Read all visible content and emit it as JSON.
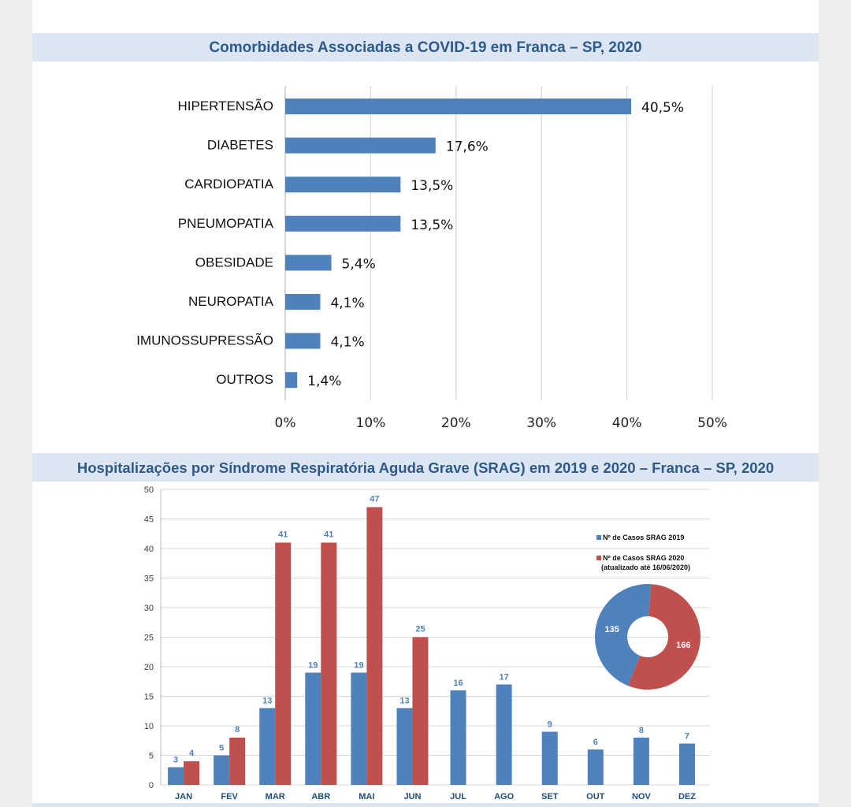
{
  "charts": [
    {
      "title": "Comorbidades Associadas a COVID-19 em Franca – SP, 2020"
    },
    {
      "title": "Hospitalizações por Síndrome Respiratória Aguda Grave (SRAG) em 2019 e 2020 – Franca – SP, 2020"
    }
  ],
  "chart_data": [
    {
      "type": "bar",
      "orientation": "horizontal",
      "title": "Comorbidades Associadas a COVID-19 em Franca – SP, 2020",
      "categories": [
        "HIPERTENSÃO",
        "DIABETES",
        "CARDIOPATIA",
        "PNEUMOPATIA",
        "OBESIDADE",
        "NEUROPATIA",
        "IMUNOSSUPRESSÃO",
        "OUTROS"
      ],
      "values": [
        40.5,
        17.6,
        13.5,
        13.5,
        5.4,
        4.1,
        4.1,
        1.4
      ],
      "value_labels": [
        "40,5%",
        "17,6%",
        "13,5%",
        "13,5%",
        "5,4%",
        "4,1%",
        "4,1%",
        "1,4%"
      ],
      "xlim": [
        0,
        50
      ],
      "x_ticks": [
        0,
        10,
        20,
        30,
        40,
        50
      ],
      "x_tick_labels": [
        "0%",
        "10%",
        "20%",
        "30%",
        "40%",
        "50%"
      ],
      "grid": "vertical",
      "color": "#4f81bd"
    },
    {
      "type": "bar",
      "title": "Hospitalizações por Síndrome Respiratória Aguda Grave (SRAG) em 2019 e 2020 – Franca – SP, 2020",
      "categories": [
        "JAN",
        "FEV",
        "MAR",
        "ABR",
        "MAI",
        "JUN",
        "JUL",
        "AGO",
        "SET",
        "OUT",
        "NOV",
        "DEZ"
      ],
      "series": [
        {
          "name": "Nº de Casos SRAG 2019",
          "color": "#4f81bd",
          "values": [
            3,
            5,
            13,
            19,
            19,
            13,
            16,
            17,
            9,
            6,
            8,
            7
          ]
        },
        {
          "name": "Nº de Casos SRAG 2020",
          "name_line2": "(atualizado até 16/06/2020)",
          "color": "#c0504d",
          "values": [
            4,
            8,
            41,
            41,
            47,
            25,
            null,
            null,
            null,
            null,
            null,
            null
          ]
        }
      ],
      "ylim": [
        0,
        50
      ],
      "y_ticks": [
        0,
        5,
        10,
        15,
        20,
        25,
        30,
        35,
        40,
        45,
        50
      ],
      "grid": "horizontal",
      "legend_position": "right",
      "inset_donut": {
        "type": "pie",
        "values": [
          135,
          166
        ],
        "labels": [
          "135",
          "166"
        ],
        "colors": [
          "#4f81bd",
          "#c0504d"
        ]
      }
    }
  ]
}
